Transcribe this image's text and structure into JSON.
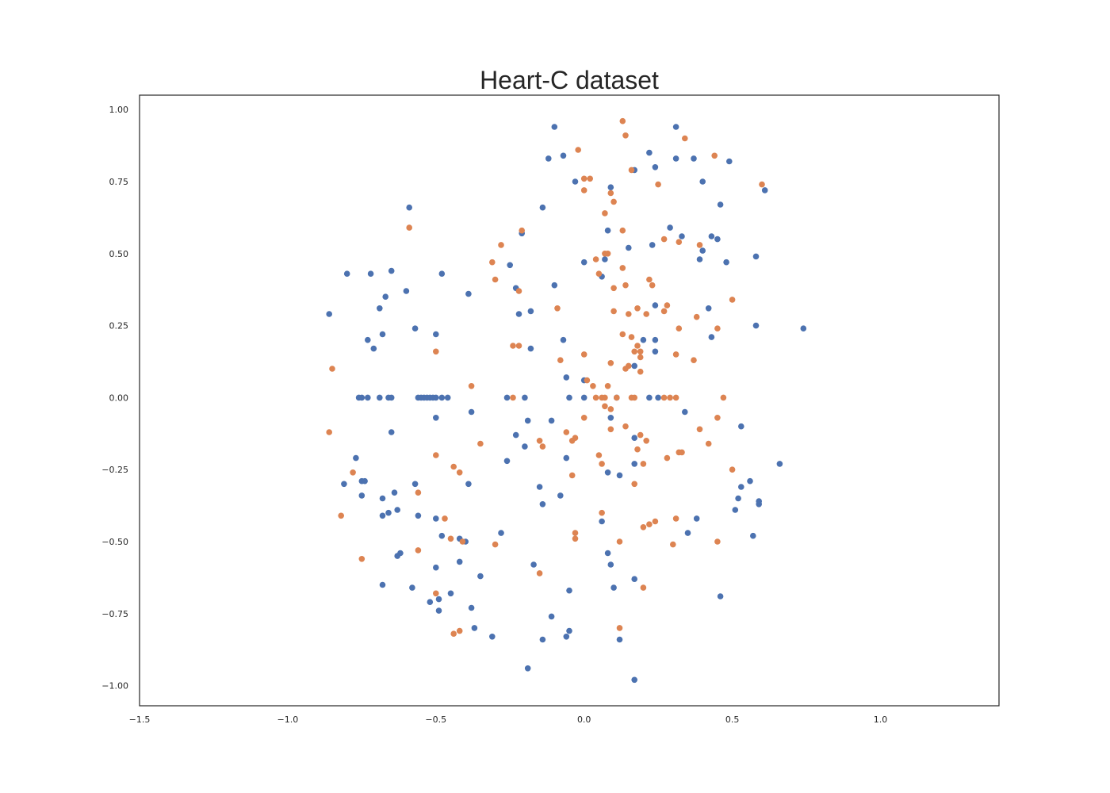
{
  "chart_data": {
    "type": "scatter",
    "title": "Heart-C dataset",
    "xlabel": "",
    "ylabel": "",
    "xlim": [
      -1.5,
      1.4
    ],
    "ylim": [
      -1.07,
      1.05
    ],
    "grid": false,
    "legend": "none",
    "xticks": [
      -1.5,
      -1.0,
      -0.5,
      0.0,
      0.5,
      1.0
    ],
    "xtick_labels": [
      "−1.5",
      "−1.0",
      "−0.5",
      "0.0",
      "0.5",
      "1.0"
    ],
    "yticks": [
      1.0,
      0.75,
      0.5,
      0.25,
      0.0,
      -0.25,
      -0.5,
      -0.75,
      -1.0
    ],
    "ytick_labels": [
      "1.00",
      "0.75",
      "0.50",
      "0.25",
      "0.00",
      "−0.25",
      "−0.50",
      "−0.75",
      "−1.00"
    ],
    "series": [
      {
        "color": "#4c72b0",
        "points": [
          [
            -0.1,
            0.94
          ],
          [
            -0.12,
            0.83
          ],
          [
            -0.07,
            0.84
          ],
          [
            -0.03,
            0.75
          ],
          [
            0.09,
            0.73
          ],
          [
            0.17,
            0.79
          ],
          [
            0.22,
            0.85
          ],
          [
            0.24,
            0.8
          ],
          [
            0.31,
            0.94
          ],
          [
            0.31,
            0.83
          ],
          [
            0.37,
            0.83
          ],
          [
            0.49,
            0.82
          ],
          [
            0.61,
            0.72
          ],
          [
            0.4,
            0.75
          ],
          [
            -0.59,
            0.66
          ],
          [
            -0.14,
            0.66
          ],
          [
            0.46,
            0.67
          ],
          [
            -0.21,
            0.57
          ],
          [
            0.08,
            0.58
          ],
          [
            0.29,
            0.59
          ],
          [
            0.33,
            0.56
          ],
          [
            0.43,
            0.56
          ],
          [
            0.45,
            0.55
          ],
          [
            0.23,
            0.53
          ],
          [
            0.15,
            0.52
          ],
          [
            0.4,
            0.51
          ],
          [
            0.58,
            0.49
          ],
          [
            0.07,
            0.48
          ],
          [
            0.0,
            0.47
          ],
          [
            0.39,
            0.48
          ],
          [
            0.48,
            0.47
          ],
          [
            -0.8,
            0.43
          ],
          [
            -0.72,
            0.43
          ],
          [
            -0.65,
            0.44
          ],
          [
            -0.48,
            0.43
          ],
          [
            -0.25,
            0.46
          ],
          [
            0.06,
            0.42
          ],
          [
            -0.1,
            0.39
          ],
          [
            -0.23,
            0.38
          ],
          [
            -0.6,
            0.37
          ],
          [
            -0.39,
            0.36
          ],
          [
            -0.67,
            0.35
          ],
          [
            -0.69,
            0.31
          ],
          [
            -0.86,
            0.29
          ],
          [
            -0.18,
            0.3
          ],
          [
            -0.22,
            0.29
          ],
          [
            0.42,
            0.31
          ],
          [
            0.24,
            0.32
          ],
          [
            -0.57,
            0.24
          ],
          [
            -0.5,
            0.22
          ],
          [
            -0.68,
            0.22
          ],
          [
            -0.73,
            0.2
          ],
          [
            -0.71,
            0.17
          ],
          [
            -0.07,
            0.2
          ],
          [
            0.2,
            0.2
          ],
          [
            0.24,
            0.2
          ],
          [
            -0.18,
            0.17
          ],
          [
            0.24,
            0.16
          ],
          [
            0.43,
            0.21
          ],
          [
            0.58,
            0.25
          ],
          [
            0.74,
            0.24
          ],
          [
            0.17,
            0.11
          ],
          [
            -0.06,
            0.07
          ],
          [
            0.0,
            0.06
          ],
          [
            -0.76,
            0.0
          ],
          [
            -0.75,
            0.0
          ],
          [
            -0.73,
            0.0
          ],
          [
            -0.69,
            0.0
          ],
          [
            -0.66,
            0.0
          ],
          [
            -0.65,
            0.0
          ],
          [
            -0.56,
            0.0
          ],
          [
            -0.55,
            0.0
          ],
          [
            -0.54,
            0.0
          ],
          [
            -0.53,
            0.0
          ],
          [
            -0.52,
            0.0
          ],
          [
            -0.51,
            0.0
          ],
          [
            -0.5,
            0.0
          ],
          [
            -0.48,
            0.0
          ],
          [
            -0.46,
            0.0
          ],
          [
            -0.26,
            0.0
          ],
          [
            -0.2,
            0.0
          ],
          [
            -0.05,
            0.0
          ],
          [
            0.0,
            0.0
          ],
          [
            0.11,
            0.0
          ],
          [
            0.22,
            0.0
          ],
          [
            0.25,
            0.0
          ],
          [
            -0.5,
            -0.07
          ],
          [
            -0.38,
            -0.05
          ],
          [
            -0.19,
            -0.08
          ],
          [
            -0.11,
            -0.08
          ],
          [
            0.09,
            -0.07
          ],
          [
            0.34,
            -0.05
          ],
          [
            -0.65,
            -0.12
          ],
          [
            -0.23,
            -0.13
          ],
          [
            -0.2,
            -0.17
          ],
          [
            0.17,
            -0.14
          ],
          [
            0.53,
            -0.1
          ],
          [
            -0.77,
            -0.21
          ],
          [
            -0.26,
            -0.22
          ],
          [
            -0.06,
            -0.21
          ],
          [
            0.17,
            -0.23
          ],
          [
            0.66,
            -0.23
          ],
          [
            -0.81,
            -0.3
          ],
          [
            -0.75,
            -0.29
          ],
          [
            -0.74,
            -0.29
          ],
          [
            -0.57,
            -0.3
          ],
          [
            -0.39,
            -0.3
          ],
          [
            0.08,
            -0.26
          ],
          [
            0.12,
            -0.27
          ],
          [
            0.56,
            -0.29
          ],
          [
            0.53,
            -0.31
          ],
          [
            -0.15,
            -0.31
          ],
          [
            -0.75,
            -0.34
          ],
          [
            -0.68,
            -0.35
          ],
          [
            -0.64,
            -0.33
          ],
          [
            -0.08,
            -0.34
          ],
          [
            -0.14,
            -0.37
          ],
          [
            0.52,
            -0.35
          ],
          [
            0.59,
            -0.36
          ],
          [
            0.59,
            -0.37
          ],
          [
            -0.63,
            -0.39
          ],
          [
            -0.66,
            -0.4
          ],
          [
            -0.68,
            -0.41
          ],
          [
            -0.56,
            -0.41
          ],
          [
            -0.5,
            -0.42
          ],
          [
            0.51,
            -0.39
          ],
          [
            0.06,
            -0.43
          ],
          [
            0.38,
            -0.42
          ],
          [
            -0.48,
            -0.48
          ],
          [
            -0.42,
            -0.49
          ],
          [
            -0.4,
            -0.5
          ],
          [
            -0.28,
            -0.47
          ],
          [
            0.35,
            -0.47
          ],
          [
            0.57,
            -0.48
          ],
          [
            -0.62,
            -0.54
          ],
          [
            -0.63,
            -0.55
          ],
          [
            -0.5,
            -0.59
          ],
          [
            -0.42,
            -0.57
          ],
          [
            -0.35,
            -0.62
          ],
          [
            -0.17,
            -0.58
          ],
          [
            0.08,
            -0.54
          ],
          [
            0.09,
            -0.58
          ],
          [
            -0.68,
            -0.65
          ],
          [
            -0.58,
            -0.66
          ],
          [
            -0.52,
            -0.71
          ],
          [
            -0.49,
            -0.7
          ],
          [
            -0.45,
            -0.68
          ],
          [
            -0.49,
            -0.74
          ],
          [
            -0.38,
            -0.73
          ],
          [
            -0.05,
            -0.67
          ],
          [
            0.1,
            -0.66
          ],
          [
            0.17,
            -0.63
          ],
          [
            0.46,
            -0.69
          ],
          [
            -0.11,
            -0.76
          ],
          [
            -0.37,
            -0.8
          ],
          [
            -0.31,
            -0.83
          ],
          [
            -0.14,
            -0.84
          ],
          [
            -0.06,
            -0.83
          ],
          [
            -0.05,
            -0.81
          ],
          [
            0.12,
            -0.84
          ],
          [
            -0.19,
            -0.94
          ],
          [
            0.17,
            -0.98
          ]
        ]
      },
      {
        "color": "#dd8452",
        "points": [
          [
            0.13,
            0.96
          ],
          [
            0.14,
            0.91
          ],
          [
            0.34,
            0.9
          ],
          [
            -0.02,
            0.86
          ],
          [
            0.44,
            0.84
          ],
          [
            0.16,
            0.79
          ],
          [
            0.0,
            0.76
          ],
          [
            0.02,
            0.76
          ],
          [
            0.0,
            0.72
          ],
          [
            0.25,
            0.74
          ],
          [
            0.6,
            0.74
          ],
          [
            0.09,
            0.71
          ],
          [
            0.1,
            0.68
          ],
          [
            0.07,
            0.64
          ],
          [
            -0.59,
            0.59
          ],
          [
            -0.21,
            0.58
          ],
          [
            0.13,
            0.58
          ],
          [
            -0.28,
            0.53
          ],
          [
            0.27,
            0.55
          ],
          [
            0.32,
            0.54
          ],
          [
            0.39,
            0.53
          ],
          [
            0.07,
            0.5
          ],
          [
            0.08,
            0.5
          ],
          [
            0.04,
            0.48
          ],
          [
            -0.31,
            0.47
          ],
          [
            -0.3,
            0.41
          ],
          [
            0.05,
            0.43
          ],
          [
            0.13,
            0.45
          ],
          [
            0.22,
            0.41
          ],
          [
            0.23,
            0.39
          ],
          [
            0.14,
            0.39
          ],
          [
            -0.22,
            0.37
          ],
          [
            0.1,
            0.38
          ],
          [
            0.5,
            0.34
          ],
          [
            -0.09,
            0.31
          ],
          [
            0.1,
            0.3
          ],
          [
            0.18,
            0.31
          ],
          [
            0.21,
            0.29
          ],
          [
            0.15,
            0.29
          ],
          [
            0.27,
            0.3
          ],
          [
            0.28,
            0.32
          ],
          [
            0.38,
            0.28
          ],
          [
            0.32,
            0.24
          ],
          [
            0.45,
            0.24
          ],
          [
            0.13,
            0.22
          ],
          [
            0.16,
            0.21
          ],
          [
            0.18,
            0.18
          ],
          [
            0.19,
            0.16
          ],
          [
            0.17,
            0.16
          ],
          [
            0.19,
            0.14
          ],
          [
            -0.24,
            0.18
          ],
          [
            -0.22,
            0.18
          ],
          [
            -0.5,
            0.16
          ],
          [
            0.0,
            0.15
          ],
          [
            0.31,
            0.15
          ],
          [
            0.37,
            0.13
          ],
          [
            -0.85,
            0.1
          ],
          [
            -0.08,
            0.13
          ],
          [
            0.09,
            0.12
          ],
          [
            0.15,
            0.11
          ],
          [
            0.14,
            0.1
          ],
          [
            0.19,
            0.09
          ],
          [
            -0.38,
            0.04
          ],
          [
            0.01,
            0.06
          ],
          [
            0.03,
            0.04
          ],
          [
            0.08,
            0.04
          ],
          [
            -0.24,
            0.0
          ],
          [
            0.04,
            0.0
          ],
          [
            0.06,
            0.0
          ],
          [
            0.07,
            0.0
          ],
          [
            0.11,
            0.0
          ],
          [
            0.16,
            0.0
          ],
          [
            0.17,
            0.0
          ],
          [
            0.27,
            0.0
          ],
          [
            0.29,
            0.0
          ],
          [
            0.31,
            0.0
          ],
          [
            0.47,
            0.0
          ],
          [
            0.07,
            -0.03
          ],
          [
            0.09,
            -0.04
          ],
          [
            0.0,
            -0.07
          ],
          [
            0.14,
            -0.1
          ],
          [
            0.09,
            -0.11
          ],
          [
            0.45,
            -0.07
          ],
          [
            0.39,
            -0.11
          ],
          [
            -0.86,
            -0.12
          ],
          [
            -0.06,
            -0.12
          ],
          [
            -0.04,
            -0.15
          ],
          [
            -0.03,
            -0.14
          ],
          [
            -0.15,
            -0.15
          ],
          [
            -0.14,
            -0.17
          ],
          [
            -0.35,
            -0.16
          ],
          [
            0.19,
            -0.13
          ],
          [
            0.21,
            -0.15
          ],
          [
            0.18,
            -0.18
          ],
          [
            0.05,
            -0.2
          ],
          [
            0.06,
            -0.23
          ],
          [
            0.2,
            -0.23
          ],
          [
            0.28,
            -0.21
          ],
          [
            0.32,
            -0.19
          ],
          [
            0.33,
            -0.19
          ],
          [
            0.42,
            -0.16
          ],
          [
            -0.5,
            -0.2
          ],
          [
            -0.44,
            -0.24
          ],
          [
            -0.42,
            -0.26
          ],
          [
            -0.78,
            -0.26
          ],
          [
            -0.04,
            -0.27
          ],
          [
            0.17,
            -0.3
          ],
          [
            0.5,
            -0.25
          ],
          [
            -0.56,
            -0.33
          ],
          [
            -0.82,
            -0.41
          ],
          [
            -0.47,
            -0.42
          ],
          [
            0.06,
            -0.4
          ],
          [
            0.2,
            -0.45
          ],
          [
            0.22,
            -0.44
          ],
          [
            0.24,
            -0.43
          ],
          [
            0.31,
            -0.42
          ],
          [
            -0.45,
            -0.49
          ],
          [
            -0.41,
            -0.5
          ],
          [
            -0.3,
            -0.51
          ],
          [
            -0.03,
            -0.47
          ],
          [
            -0.03,
            -0.49
          ],
          [
            0.12,
            -0.5
          ],
          [
            0.3,
            -0.51
          ],
          [
            0.45,
            -0.5
          ],
          [
            -0.56,
            -0.53
          ],
          [
            -0.75,
            -0.56
          ],
          [
            -0.15,
            -0.61
          ],
          [
            -0.5,
            -0.68
          ],
          [
            0.2,
            -0.66
          ],
          [
            -0.44,
            -0.82
          ],
          [
            -0.42,
            -0.81
          ],
          [
            0.12,
            -0.8
          ]
        ]
      }
    ]
  }
}
